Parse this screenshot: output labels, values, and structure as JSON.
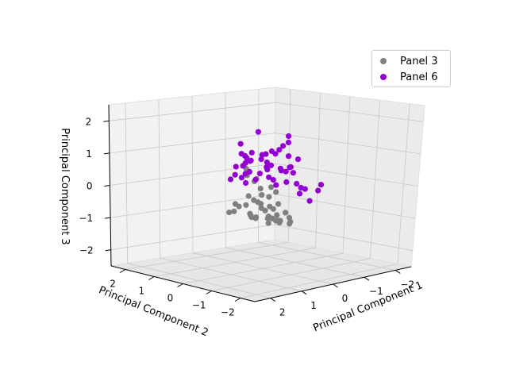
{
  "chart_data": {
    "type": "scatter",
    "projection": "3d",
    "title": "",
    "xlabel": "Principal Component 1",
    "ylabel": "Principal Component 2",
    "zlabel": "Principal Component 3",
    "xlim": [
      -2.5,
      2.5
    ],
    "ylim": [
      -2.5,
      2.5
    ],
    "zlim": [
      -2.5,
      2.5
    ],
    "xticks": [
      "2",
      "1",
      "0",
      "−1",
      "−2"
    ],
    "yticks": [
      "−2",
      "−1",
      "0",
      "1",
      "2"
    ],
    "zticks": [
      "2",
      "1",
      "0",
      "−1",
      "−2"
    ],
    "grid": true,
    "legend": "top-right",
    "series": [
      {
        "name": "Panel 3",
        "color": "#808080",
        "points": [
          [
            1.6,
            -1.2,
            0.6
          ],
          [
            1.4,
            -1.0,
            0.4
          ],
          [
            1.2,
            -1.1,
            0.3
          ],
          [
            1.0,
            -0.8,
            0.2
          ],
          [
            1.3,
            -1.4,
            -0.1
          ],
          [
            0.9,
            -1.2,
            -0.2
          ],
          [
            1.1,
            -0.9,
            -0.3
          ],
          [
            0.8,
            -0.7,
            -0.4
          ],
          [
            0.7,
            -1.0,
            -0.5
          ],
          [
            1.5,
            -1.6,
            -0.3
          ],
          [
            0.6,
            -0.6,
            -0.6
          ],
          [
            0.5,
            -0.9,
            -0.6
          ],
          [
            0.4,
            -0.5,
            -0.7
          ],
          [
            0.9,
            -0.4,
            -0.5
          ],
          [
            0.3,
            -0.8,
            -0.8
          ],
          [
            0.2,
            -0.4,
            -0.9
          ],
          [
            0.6,
            -0.2,
            -0.8
          ],
          [
            0.1,
            -0.6,
            -1.0
          ],
          [
            0.0,
            -0.3,
            -1.0
          ],
          [
            -0.2,
            -0.2,
            -1.1
          ],
          [
            -0.4,
            -0.1,
            -1.2
          ],
          [
            -0.6,
            0.1,
            -1.2
          ],
          [
            -0.8,
            0.0,
            -1.3
          ],
          [
            -1.0,
            0.2,
            -1.3
          ],
          [
            -0.3,
            0.2,
            -1.1
          ],
          [
            0.4,
            0.0,
            -0.9
          ],
          [
            0.2,
            0.2,
            -1.0
          ],
          [
            -0.1,
            0.4,
            -1.1
          ],
          [
            0.8,
            0.3,
            -0.8
          ],
          [
            1.0,
            -0.1,
            -0.7
          ],
          [
            1.2,
            -0.5,
            -0.5
          ],
          [
            0.7,
            -1.3,
            -0.4
          ],
          [
            0.3,
            -1.1,
            -0.7
          ],
          [
            0.0,
            -0.9,
            -0.9
          ],
          [
            1.4,
            -0.6,
            -0.4
          ],
          [
            1.1,
            -1.5,
            0.1
          ],
          [
            0.5,
            -0.3,
            -0.9
          ],
          [
            -0.5,
            0.4,
            -1.3
          ],
          [
            -0.7,
            0.5,
            -1.2
          ],
          [
            1.7,
            -1.4,
            -0.1
          ],
          [
            0.9,
            -0.9,
            0.0
          ],
          [
            0.6,
            -1.1,
            -0.1
          ]
        ]
      },
      {
        "name": "Panel 6",
        "color": "#9400d3",
        "points": [
          [
            0.9,
            -0.2,
            1.2
          ],
          [
            0.7,
            0.0,
            0.9
          ],
          [
            0.5,
            -0.1,
            0.7
          ],
          [
            0.3,
            0.1,
            0.9
          ],
          [
            0.1,
            0.0,
            0.7
          ],
          [
            -0.1,
            0.2,
            0.8
          ],
          [
            -0.3,
            0.1,
            0.9
          ],
          [
            -0.5,
            0.2,
            0.8
          ],
          [
            -0.7,
            0.3,
            0.9
          ],
          [
            -0.9,
            0.2,
            0.7
          ],
          [
            0.2,
            -0.3,
            0.5
          ],
          [
            0.0,
            -0.1,
            0.4
          ],
          [
            -0.2,
            0.0,
            0.5
          ],
          [
            -0.4,
            -0.1,
            0.4
          ],
          [
            -0.6,
            0.1,
            0.3
          ],
          [
            0.4,
            0.2,
            0.6
          ],
          [
            0.6,
            0.3,
            0.5
          ],
          [
            0.8,
            0.1,
            0.3
          ],
          [
            1.0,
            -0.4,
            0.6
          ],
          [
            -0.8,
            0.0,
            0.4
          ],
          [
            -1.0,
            0.4,
            0.2
          ],
          [
            -1.2,
            0.5,
            0.3
          ],
          [
            -1.4,
            0.6,
            0.1
          ],
          [
            0.1,
            0.4,
            0.3
          ],
          [
            -0.3,
            0.5,
            0.2
          ],
          [
            0.5,
            0.6,
            0.1
          ],
          [
            0.3,
            0.3,
            0.0
          ],
          [
            -0.1,
            -0.2,
            0.1
          ],
          [
            0.7,
            -0.5,
            0.2
          ],
          [
            1.1,
            -0.6,
            0.4
          ],
          [
            -0.5,
            -0.2,
            0.0
          ],
          [
            -0.9,
            -0.1,
            -0.1
          ],
          [
            -1.3,
            0.2,
            -0.3
          ],
          [
            -1.6,
            0.4,
            -0.4
          ],
          [
            -2.0,
            0.3,
            -0.3
          ],
          [
            -1.7,
            0.7,
            -0.6
          ],
          [
            -2.1,
            0.8,
            -0.9
          ],
          [
            0.2,
            0.0,
            1.5
          ],
          [
            -0.2,
            -0.4,
            1.1
          ],
          [
            -1.5,
            0.9,
            1.0
          ],
          [
            -1.5,
            0.9,
            1.2
          ],
          [
            -2.0,
            0.4,
            -0.5
          ],
          [
            0.6,
            0.1,
            0.2
          ],
          [
            0.0,
            0.5,
            0.6
          ],
          [
            -0.6,
            0.6,
            0.5
          ],
          [
            0.8,
            -0.3,
            0.8
          ],
          [
            0.4,
            -0.5,
            0.9
          ],
          [
            -0.4,
            0.3,
            0.1
          ],
          [
            -0.8,
            0.5,
            -0.2
          ],
          [
            1.2,
            -0.7,
            0.9
          ],
          [
            -1.1,
            0.1,
            0.6
          ]
        ]
      }
    ]
  }
}
